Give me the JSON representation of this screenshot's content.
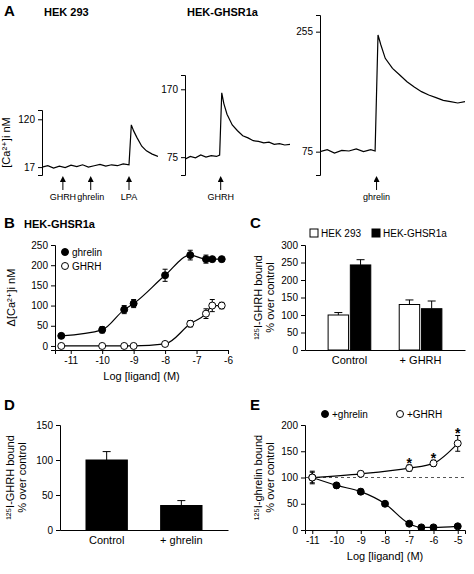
{
  "chart_data": [
    {
      "panel": "A",
      "type": "line",
      "title": "HEK 293",
      "y_label": "[Ca²⁺]i nM",
      "color": "#000000",
      "marker": "none",
      "tick_labels": "y",
      "x": [
        0,
        5,
        10,
        15,
        20,
        25,
        30,
        35,
        40,
        45,
        50,
        55,
        60,
        65,
        70,
        75,
        77,
        79,
        82,
        86,
        90,
        95,
        100
      ],
      "values": [
        17,
        20,
        15,
        19,
        16,
        21,
        18,
        22,
        17,
        20,
        23,
        19,
        22,
        20,
        24,
        22,
        108,
        95,
        80,
        62,
        52,
        45,
        40
      ],
      "xlim": [
        0,
        100
      ],
      "ylim": [
        0,
        140
      ],
      "yticks": [
        17,
        120
      ],
      "annotations": [
        {
          "text": "GHRH",
          "x": 18
        },
        {
          "text": "ghrelin",
          "x": 42
        },
        {
          "text": "LPA",
          "x": 75
        }
      ]
    },
    {
      "type": "line",
      "title": "HEK-GHSR1a",
      "color": "#000000",
      "marker": "none",
      "tick_labels": "y",
      "x": [
        0,
        5,
        10,
        15,
        20,
        25,
        30,
        33,
        35,
        37,
        40,
        45,
        50,
        55,
        60,
        65,
        70,
        75,
        80,
        85,
        90,
        95,
        100
      ],
      "values": [
        72,
        76,
        74,
        78,
        75,
        77,
        76,
        78,
        165,
        150,
        135,
        120,
        112,
        105,
        102,
        98,
        97,
        95,
        96,
        93,
        94,
        92,
        93
      ],
      "xlim": [
        0,
        100
      ],
      "ylim": [
        50,
        190
      ],
      "yticks": [
        75,
        170
      ],
      "annotations": [
        {
          "text": "GHRH",
          "x": 34
        }
      ]
    },
    {
      "type": "line",
      "color": "#000000",
      "marker": "none",
      "tick_labels": "y",
      "x": [
        0,
        5,
        10,
        15,
        20,
        25,
        30,
        35,
        38,
        40,
        42,
        45,
        50,
        55,
        60,
        65,
        70,
        75,
        80,
        85,
        90,
        95,
        100
      ],
      "values": [
        75,
        78,
        73,
        77,
        76,
        79,
        75,
        78,
        76,
        250,
        235,
        215,
        200,
        190,
        180,
        172,
        165,
        160,
        156,
        152,
        150,
        148,
        150
      ],
      "xlim": [
        0,
        100
      ],
      "ylim": [
        40,
        280
      ],
      "yticks": [
        75,
        255
      ],
      "annotations": [
        {
          "text": "ghrelin",
          "x": 39
        }
      ]
    },
    {
      "panel": "B",
      "type": "line",
      "title": "HEK-GHSR1a",
      "x_label": "Log [ligand] (M)",
      "y_label": "Δ[Ca²⁺]i nM",
      "x": [
        -11.3,
        -10,
        -9.3,
        -9,
        -8,
        -7.2,
        -6.7,
        -6.5,
        -6.2
      ],
      "series": [
        {
          "name": "ghrelin",
          "color": "#000000",
          "marker": "filled-circle",
          "values": [
            25,
            40,
            90,
            105,
            175,
            225,
            215,
            215,
            215
          ],
          "errors": [
            5,
            8,
            10,
            10,
            15,
            12,
            10,
            5,
            5
          ]
        },
        {
          "name": "GHRH",
          "color": "#000000",
          "marker": "open-circle",
          "values": [
            0,
            0,
            0,
            0,
            5,
            55,
            80,
            100,
            100
          ],
          "errors": [
            3,
            3,
            3,
            3,
            5,
            8,
            12,
            15,
            8
          ]
        }
      ],
      "xlim": [
        -11.5,
        -6
      ],
      "xticks": [
        -11,
        -10,
        -9,
        -8,
        -7,
        -6
      ],
      "ylim": [
        -10,
        250
      ],
      "yticks": [
        0,
        50,
        100,
        150,
        200,
        250
      ],
      "legend": "top-left"
    },
    {
      "panel": "C",
      "type": "bar",
      "y_label": [
        "¹²⁵I-GHRH bound",
        "% over control"
      ],
      "categories": [
        "Control",
        "+ GHRH"
      ],
      "series": [
        {
          "name": "HEK 293",
          "color": "#ffffff",
          "values": [
            100,
            130
          ],
          "errors": [
            7,
            13
          ]
        },
        {
          "name": "HEK-GHSR1a",
          "color": "#000000",
          "values": [
            243,
            118
          ],
          "errors": [
            15,
            22
          ]
        }
      ],
      "ylim": [
        0,
        300
      ],
      "yticks": [
        0,
        50,
        100,
        150,
        200,
        250,
        300
      ],
      "legend": "top"
    },
    {
      "panel": "D",
      "type": "bar",
      "y_label": [
        "¹²⁵I-GHRH bound",
        "% over control"
      ],
      "categories": [
        "Control",
        "+ ghrelin"
      ],
      "values": [
        100,
        35
      ],
      "errors": [
        12,
        7
      ],
      "color": "#000000",
      "ylim": [
        0,
        150
      ],
      "yticks": [
        0,
        50,
        100,
        150
      ]
    },
    {
      "panel": "E",
      "type": "line",
      "x_label": "Log [ligand] (M)",
      "y_label": [
        "¹²⁵I-ghrelin bound",
        "% over control"
      ],
      "series": [
        {
          "name": "+ghrelin",
          "color": "#000000",
          "marker": "filled-circle",
          "x": [
            -11,
            -10,
            -9,
            -8,
            -7,
            -6.5,
            -6,
            -5
          ],
          "values": [
            100,
            85,
            73,
            50,
            12,
            5,
            5,
            7
          ],
          "errors": [
            10,
            5,
            5,
            3,
            3,
            3,
            3,
            3
          ]
        },
        {
          "name": "+GHRH",
          "color": "#000000",
          "marker": "open-circle",
          "x": [
            -11,
            -9,
            -7,
            -6,
            -5
          ],
          "values": [
            100,
            107,
            118,
            127,
            165
          ],
          "errors": [
            12,
            5,
            6,
            6,
            15
          ]
        }
      ],
      "reference_line": 100,
      "annotations": [
        {
          "text": "*",
          "x": -7,
          "y": 128
        },
        {
          "text": "*",
          "x": -6,
          "y": 137
        },
        {
          "text": "*",
          "x": -5,
          "y": 185
        }
      ],
      "xlim": [
        -11.3,
        -4.7
      ],
      "xticks": [
        -11,
        -10,
        -9,
        -8,
        -7,
        -6,
        -5
      ],
      "ylim": [
        0,
        200
      ],
      "yticks": [
        0,
        50,
        100,
        150,
        200
      ],
      "legend": "top"
    }
  ]
}
